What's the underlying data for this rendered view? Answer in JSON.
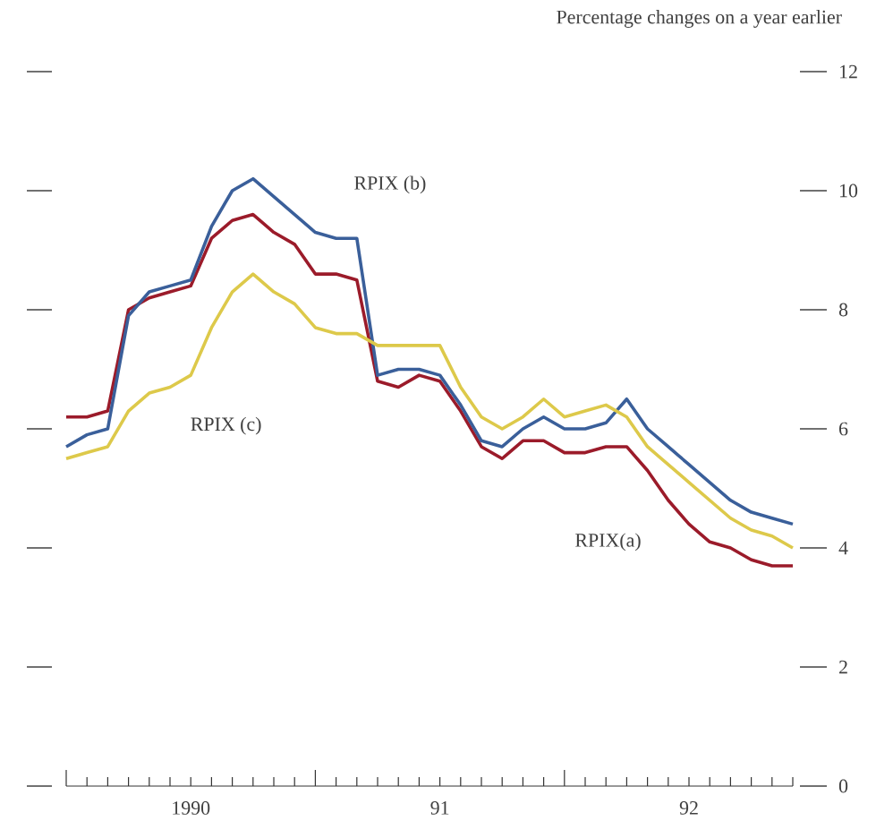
{
  "chart_data": {
    "type": "line",
    "title": "Percentage changes on a year earlier",
    "categories": [
      null,
      null,
      null,
      null,
      null,
      null,
      "1990",
      null,
      null,
      null,
      null,
      null,
      null,
      null,
      null,
      null,
      null,
      null,
      "91",
      null,
      null,
      null,
      null,
      null,
      null,
      null,
      null,
      null,
      null,
      null,
      "92",
      null,
      null,
      null,
      null,
      null
    ],
    "series": [
      {
        "name": "RPIX(a)",
        "color": "#9b1b2a",
        "values": [
          6.2,
          6.2,
          6.3,
          8.0,
          8.2,
          8.3,
          8.4,
          9.2,
          9.5,
          9.6,
          9.3,
          9.1,
          8.6,
          8.6,
          8.5,
          6.8,
          6.7,
          6.9,
          6.8,
          6.3,
          5.7,
          5.5,
          5.8,
          5.8,
          5.6,
          5.6,
          5.7,
          5.7,
          5.3,
          4.8,
          4.4,
          4.1,
          4.0,
          3.8,
          3.7,
          3.7
        ]
      },
      {
        "name": "RPIX (b)",
        "color": "#3a5f9a",
        "values": [
          5.7,
          5.9,
          6.0,
          7.9,
          8.3,
          8.4,
          8.5,
          9.4,
          10.0,
          10.2,
          9.9,
          9.6,
          9.3,
          9.2,
          9.2,
          6.9,
          7.0,
          7.0,
          6.9,
          6.4,
          5.8,
          5.7,
          6.0,
          6.2,
          6.0,
          6.0,
          6.1,
          6.5,
          6.0,
          5.7,
          5.4,
          5.1,
          4.8,
          4.6,
          4.5,
          4.4
        ]
      },
      {
        "name": "RPIX (c)",
        "color": "#ddc94a",
        "values": [
          5.5,
          5.6,
          5.7,
          6.3,
          6.6,
          6.7,
          6.9,
          7.7,
          8.3,
          8.6,
          8.3,
          8.1,
          7.7,
          7.6,
          7.6,
          7.4,
          7.4,
          7.4,
          7.4,
          6.7,
          6.2,
          6.0,
          6.2,
          6.5,
          6.2,
          6.3,
          6.4,
          6.2,
          5.7,
          5.4,
          5.1,
          4.8,
          4.5,
          4.3,
          4.2,
          4.0
        ]
      }
    ],
    "ylim": [
      0,
      12
    ],
    "yticks": [
      0,
      2,
      4,
      6,
      8,
      10,
      12
    ],
    "marker": "none",
    "line_style": "solid"
  }
}
